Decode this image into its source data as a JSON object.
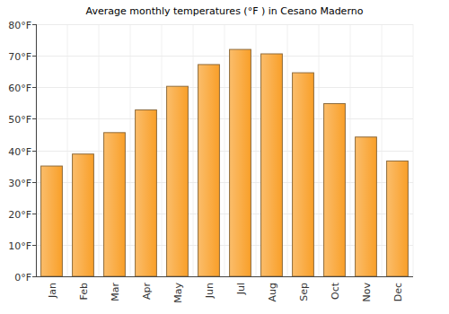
{
  "chart_data": {
    "type": "bar",
    "title": "Average monthly temperatures (°F ) in Cesano Maderno",
    "categories": [
      "Jan",
      "Feb",
      "Mar",
      "Apr",
      "May",
      "Jun",
      "Jul",
      "Aug",
      "Sep",
      "Oct",
      "Nov",
      "Dec"
    ],
    "values": [
      35,
      38.8,
      45.6,
      52.8,
      60.3,
      67.2,
      72,
      70.6,
      64.6,
      54.8,
      44.2,
      36.6
    ],
    "color": "#f9a02a",
    "ylim": [
      0,
      80
    ],
    "yticks": [
      {
        "value": 0,
        "label": "0°F"
      },
      {
        "value": 10,
        "label": "10°F"
      },
      {
        "value": 20,
        "label": "20°F"
      },
      {
        "value": 30,
        "label": "30°F"
      },
      {
        "value": 40,
        "label": "40°F"
      },
      {
        "value": 50,
        "label": "50°F"
      },
      {
        "value": 60,
        "label": "60°F"
      },
      {
        "value": 70,
        "label": "70°F"
      },
      {
        "value": 80,
        "label": "80°F"
      }
    ],
    "grid": true
  }
}
